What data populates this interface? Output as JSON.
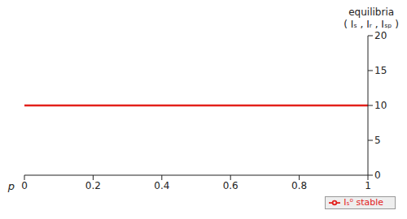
{
  "chart_data": {
    "type": "line",
    "x_label": "p",
    "y_label": "equilibria\n( Iₛ , Iᵣ , Iₛₚ )",
    "x": [
      0,
      1
    ],
    "series": [
      {
        "name": "Iₛ⁰ stable",
        "color": "#e3201b",
        "values": [
          10,
          10
        ]
      }
    ],
    "xlim": [
      0,
      1
    ],
    "xticks": [
      0,
      0.2,
      0.4,
      0.6,
      0.8,
      1
    ],
    "ylim": [
      0,
      20
    ],
    "yticks": [
      0,
      5,
      10,
      15,
      20
    ],
    "grid": false,
    "legend": "lower right"
  }
}
